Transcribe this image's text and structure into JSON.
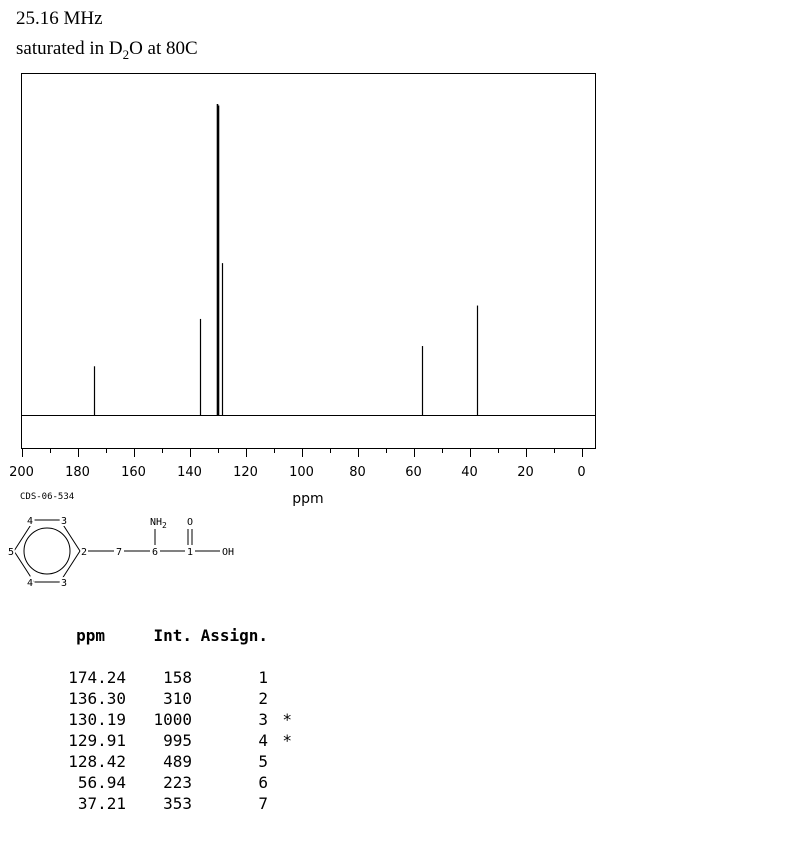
{
  "header": {
    "frequency": "25.16 MHz",
    "solvent_prefix": "saturated in D",
    "solvent_sub": "2",
    "solvent_suffix": "O at 80C"
  },
  "chart_data": {
    "type": "line",
    "title": "",
    "xlabel": "ppm",
    "ylabel": "",
    "xlim": [
      200,
      -5
    ],
    "x_ticks": [
      "200",
      "180",
      "160",
      "140",
      "120",
      "100",
      "80",
      "60",
      "40",
      "20",
      "0"
    ],
    "grid": false,
    "series": [
      {
        "peaks": [
          {
            "ppm": 174.24,
            "intensity": 158
          },
          {
            "ppm": 136.3,
            "intensity": 310
          },
          {
            "ppm": 130.19,
            "intensity": 1000
          },
          {
            "ppm": 129.91,
            "intensity": 995
          },
          {
            "ppm": 128.42,
            "intensity": 489
          },
          {
            "ppm": 56.94,
            "intensity": 223
          },
          {
            "ppm": 37.21,
            "intensity": 353
          }
        ]
      }
    ]
  },
  "structure": {
    "code": "CDS-06-534",
    "atoms": {
      "a4_top": "4",
      "a3_top": "3",
      "a5": "5",
      "a2": "2",
      "a4_bot": "4",
      "a3_bot": "3",
      "a7": "7",
      "a6": "6",
      "a1": "1",
      "nh2": "NH",
      "nh2_sub": "2",
      "o_top": "O",
      "oh": "OH"
    }
  },
  "peak_table": {
    "headers": {
      "ppm": "ppm",
      "int": "Int.",
      "assign": "Assign."
    },
    "rows": [
      {
        "ppm": "174.24",
        "int": "158",
        "assign": "1",
        "mark": ""
      },
      {
        "ppm": "136.30",
        "int": "310",
        "assign": "2",
        "mark": ""
      },
      {
        "ppm": "130.19",
        "int": "1000",
        "assign": "3",
        "mark": "*"
      },
      {
        "ppm": "129.91",
        "int": "995",
        "assign": "4",
        "mark": "*"
      },
      {
        "ppm": "128.42",
        "int": "489",
        "assign": "5",
        "mark": ""
      },
      {
        "ppm": "56.94",
        "int": "223",
        "assign": "6",
        "mark": ""
      },
      {
        "ppm": "37.21",
        "int": "353",
        "assign": "7",
        "mark": ""
      }
    ]
  }
}
